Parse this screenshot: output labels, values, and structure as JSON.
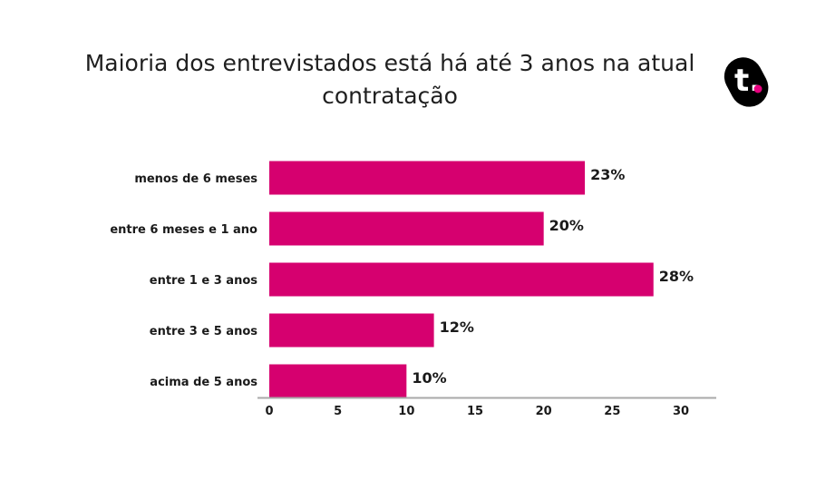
{
  "chart_data": {
    "type": "bar",
    "orientation": "horizontal",
    "title": "Maioria dos entrevistados está há até 3 anos na atual contratação",
    "categories": [
      "menos de 6 meses",
      "entre 6 meses e 1 ano",
      "entre 1 e 3 anos",
      "entre 3 e 5 anos",
      "acima de 5 anos"
    ],
    "values": [
      23,
      20,
      28,
      12,
      10
    ],
    "value_labels": [
      "23%",
      "20%",
      "28%",
      "12%",
      "10%"
    ],
    "xlim": [
      0,
      30
    ],
    "xticks": [
      "0",
      "5",
      "10",
      "15",
      "20",
      "25",
      "30"
    ],
    "xlabel": "",
    "ylabel": "",
    "grid": false,
    "legend": "none",
    "bar_color": "#d6006f"
  },
  "brand": {
    "logo_text": "t.",
    "logo_color": "#000000",
    "logo_dot_color": "#e6007e"
  }
}
